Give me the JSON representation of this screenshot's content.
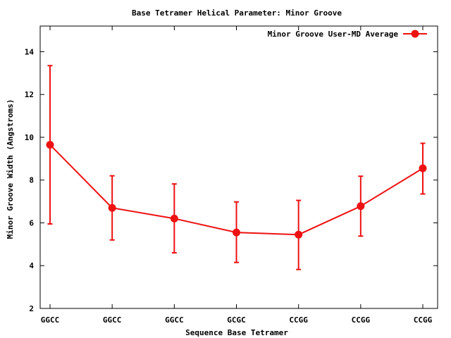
{
  "chart_data": {
    "type": "line",
    "title": "Base Tetramer Helical Parameter: Minor Groove",
    "xlabel": "Sequence Base Tetramer",
    "ylabel": "Minor Groove Width (Angstroms)",
    "categories": [
      "GGCC",
      "GGCC",
      "GGCC",
      "GCGC",
      "CCGG",
      "CCGG",
      "CCGG"
    ],
    "ylim": [
      2,
      15.2
    ],
    "yticks": [
      2,
      4,
      6,
      8,
      10,
      12,
      14
    ],
    "legend_position": "top-right",
    "grid": false,
    "series": [
      {
        "name": "Minor Groove User-MD Average",
        "color": "#ee1111",
        "values": [
          9.65,
          6.7,
          6.2,
          5.55,
          5.45,
          6.78,
          8.55
        ],
        "error_low": [
          5.95,
          5.2,
          4.6,
          4.15,
          3.82,
          5.38,
          7.35
        ],
        "error_high": [
          13.35,
          8.2,
          7.82,
          6.98,
          7.05,
          8.18,
          9.72
        ]
      }
    ]
  }
}
